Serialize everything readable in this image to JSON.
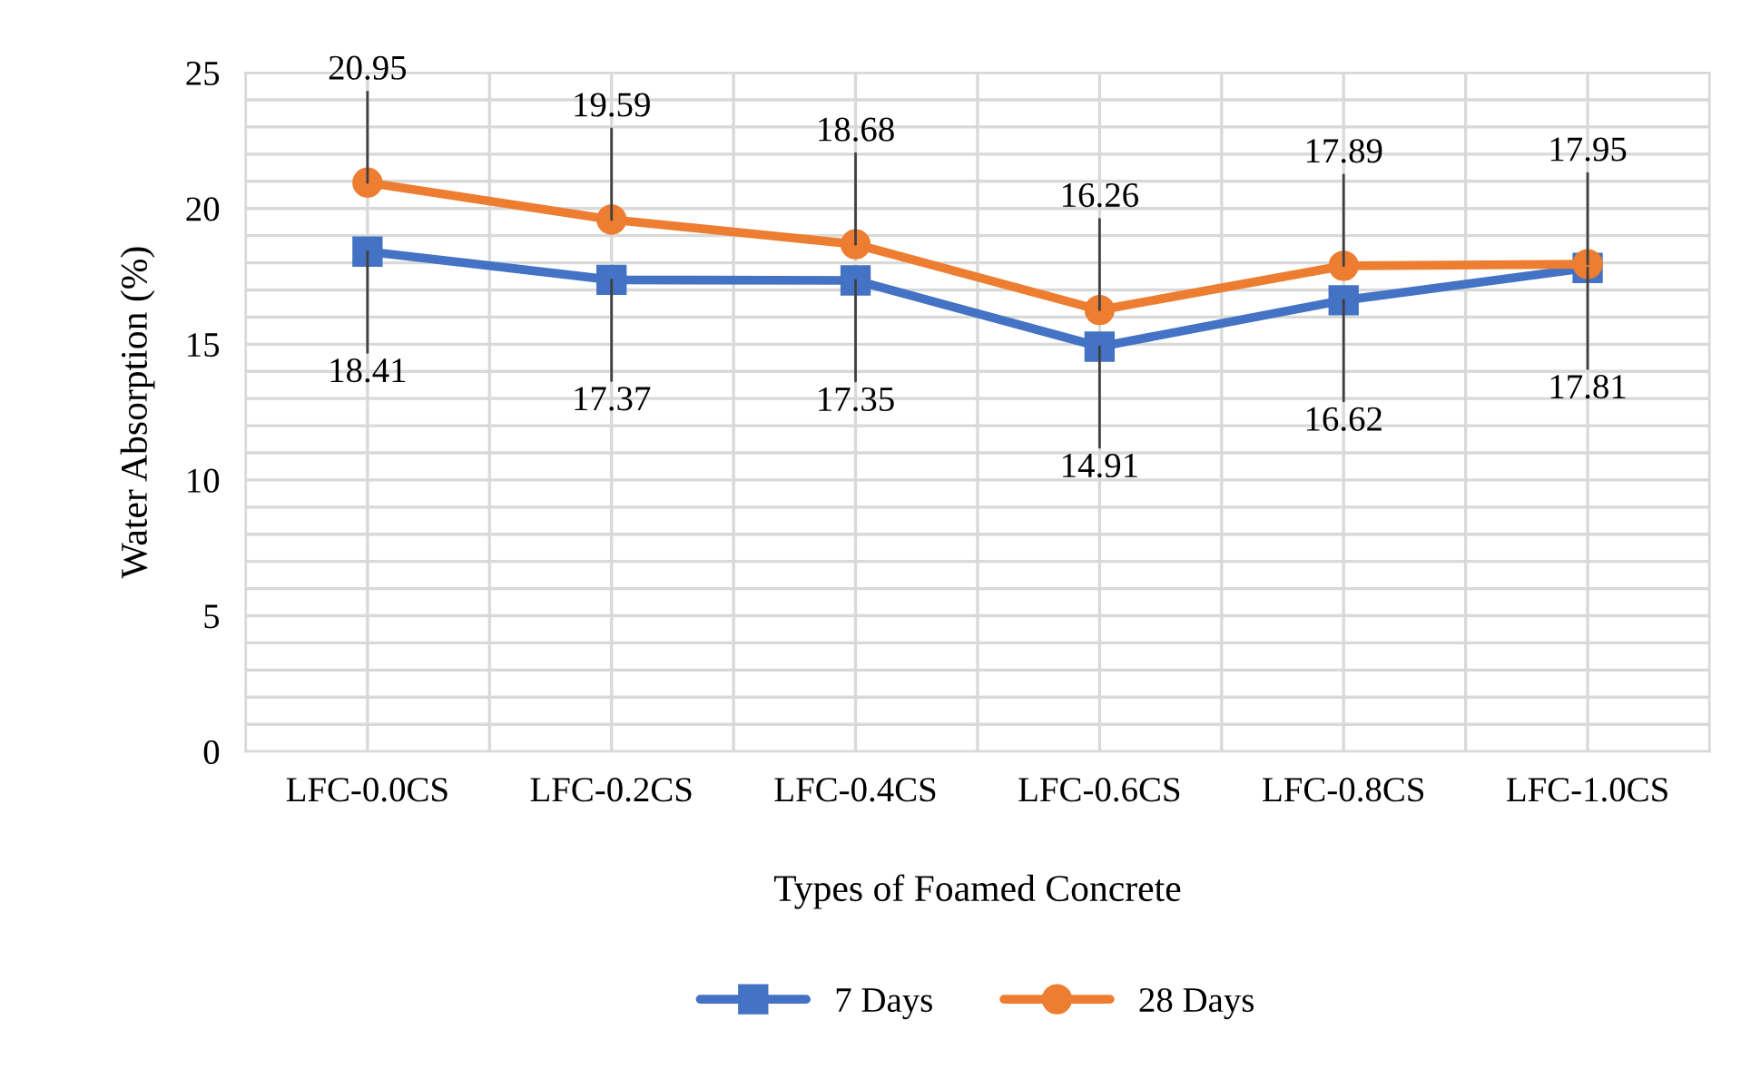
{
  "chart_data": {
    "type": "line",
    "xlabel": "Types of Foamed Concrete",
    "ylabel": "Water Absorption (%)",
    "categories": [
      "LFC-0.0CS",
      "LFC-0.2CS",
      "LFC-0.4CS",
      "LFC-0.6CS",
      "LFC-0.8CS",
      "LFC-1.0CS"
    ],
    "series": [
      {
        "name": "7 Days",
        "color": "#4472c4",
        "marker": "square",
        "values": [
          18.41,
          17.37,
          17.35,
          14.91,
          16.62,
          17.81
        ]
      },
      {
        "name": "28 Days",
        "color": "#ed7d31",
        "marker": "circle",
        "values": [
          20.95,
          19.59,
          18.68,
          16.26,
          17.89,
          17.95
        ]
      }
    ],
    "ylim": [
      0,
      25
    ],
    "yticks": [
      0,
      5,
      10,
      15,
      20,
      25
    ],
    "grid": true,
    "legend": "bottom",
    "data_labels": true,
    "line_style": "solid"
  }
}
